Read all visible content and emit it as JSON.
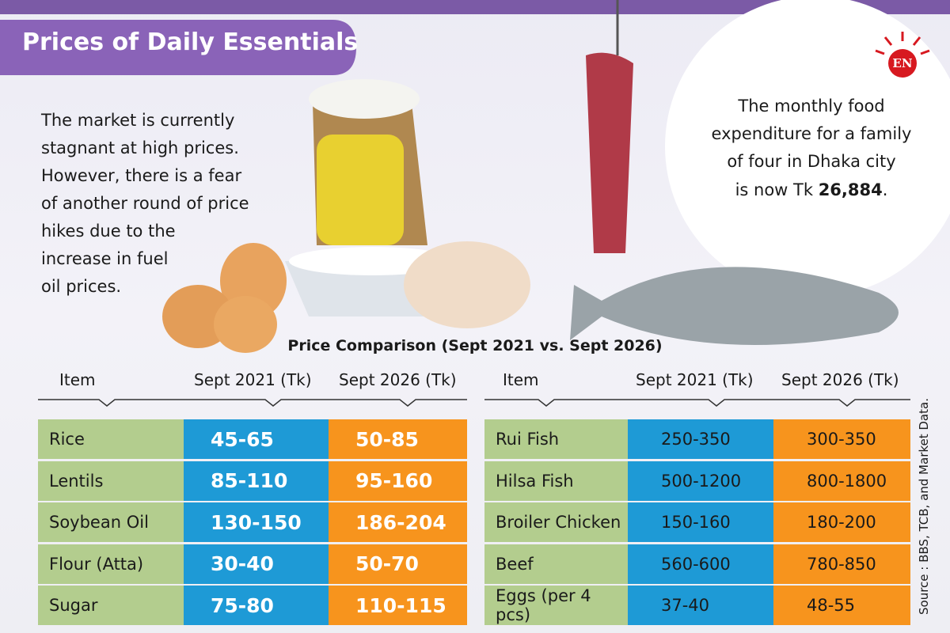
{
  "header": {
    "title": "Prices of Daily Essentials",
    "logo": "EN"
  },
  "intro": {
    "lines": [
      "The market is currently",
      "stagnant at high prices.",
      "However, there is a fear",
      "of another round of price",
      "hikes due to the",
      "increase in fuel",
      "oil prices."
    ]
  },
  "callout": {
    "lines": [
      "The monthly food",
      "expenditure for a family",
      "of four in Dhaka city"
    ],
    "prefix": "is now Tk ",
    "highlight": "26,884",
    "suffix": "."
  },
  "table_title": "Price Comparison (Sept 2021 vs. Sept 2026)",
  "tables": [
    {
      "headers": [
        "Item",
        "Sept 2021 (Tk)",
        "Sept 2026 (Tk)"
      ],
      "rows": [
        [
          "Rice",
          "45-65",
          "50-85"
        ],
        [
          "Lentils",
          "85-110",
          "95-160"
        ],
        [
          "Soybean Oil",
          "130-150",
          "186-204"
        ],
        [
          "Flour (Atta)",
          "30-40",
          "50-70"
        ],
        [
          "Sugar",
          "75-80",
          "110-115"
        ]
      ]
    },
    {
      "headers": [
        "Item",
        "Sept 2021 (Tk)",
        "Sept 2026 (Tk)"
      ],
      "rows": [
        [
          "Rui Fish",
          "250-350",
          "300-350"
        ],
        [
          "Hilsa Fish",
          "500-1200",
          "800-1800"
        ],
        [
          "Broiler Chicken",
          "150-160",
          "180-200"
        ],
        [
          "Beef",
          "560-600",
          "780-850"
        ],
        [
          "Eggs (per 4 pcs)",
          "37-40",
          "48-55"
        ]
      ]
    }
  ],
  "source": "Source : BBS, TCB, and Market Data."
}
